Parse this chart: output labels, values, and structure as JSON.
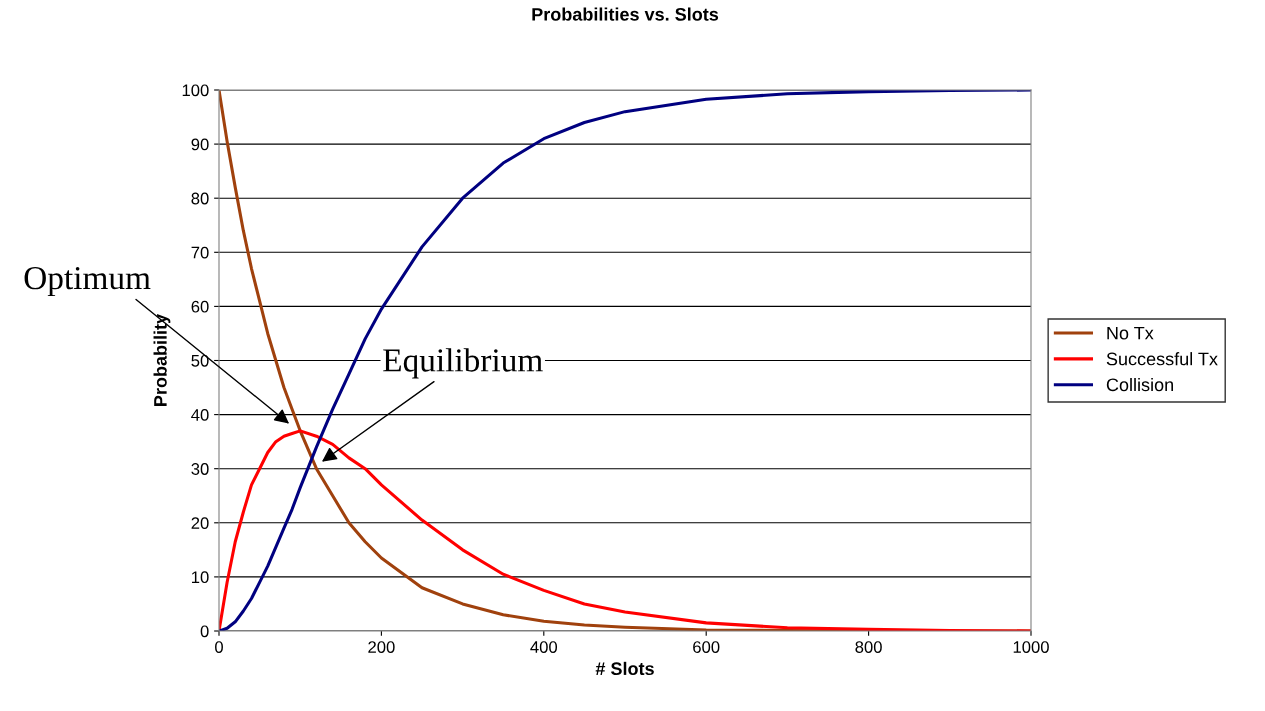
{
  "chart_data": {
    "type": "line",
    "title": "Probabilities vs. Slots",
    "xlabel": "# Slots",
    "ylabel": "Probability",
    "x": [
      0,
      10,
      20,
      30,
      40,
      50,
      60,
      70,
      80,
      90,
      100,
      120,
      140,
      160,
      180,
      200,
      250,
      300,
      350,
      400,
      450,
      500,
      600,
      700,
      800,
      900,
      1000
    ],
    "series": [
      {
        "name": "No Tx",
        "color": "#a0410d",
        "values": [
          100,
          90.5,
          82,
          74,
          67,
          61,
          55,
          50,
          45,
          41,
          37,
          30,
          25,
          20,
          16.5,
          13.5,
          8,
          5,
          3,
          1.8,
          1.1,
          0.7,
          0.2,
          0.1,
          0,
          0,
          0
        ]
      },
      {
        "name": "Successful Tx",
        "color": "#ff0000",
        "values": [
          0,
          9,
          16.5,
          22,
          27,
          30,
          33,
          35,
          36,
          36.5,
          37,
          36,
          34.5,
          32,
          30,
          27,
          20.5,
          15,
          10.5,
          7.5,
          5,
          3.5,
          1.5,
          0.6,
          0.3,
          0.1,
          0
        ]
      },
      {
        "name": "Collision",
        "color": "#000080",
        "values": [
          0,
          0.5,
          1.7,
          3.7,
          6,
          9,
          12,
          15.5,
          19,
          22.5,
          26.5,
          34,
          41,
          47.5,
          54,
          59.5,
          71,
          80,
          86.5,
          91,
          94,
          96,
          98.3,
          99.3,
          99.7,
          99.9,
          100
        ]
      }
    ],
    "annotations": [
      {
        "text": "Optimum",
        "x": 89,
        "y": 38
      },
      {
        "text": "Equilibrium",
        "x": 124,
        "y": 31
      }
    ],
    "xlim": [
      0,
      1000
    ],
    "xticks": [
      0,
      200,
      400,
      600,
      800,
      1000
    ],
    "ylim": [
      0,
      100
    ],
    "yticks": [
      0,
      10,
      20,
      30,
      40,
      50,
      60,
      70,
      80,
      90,
      100
    ],
    "grid": "y",
    "legend": "right",
    "marker": "none",
    "line_style": "solid"
  }
}
